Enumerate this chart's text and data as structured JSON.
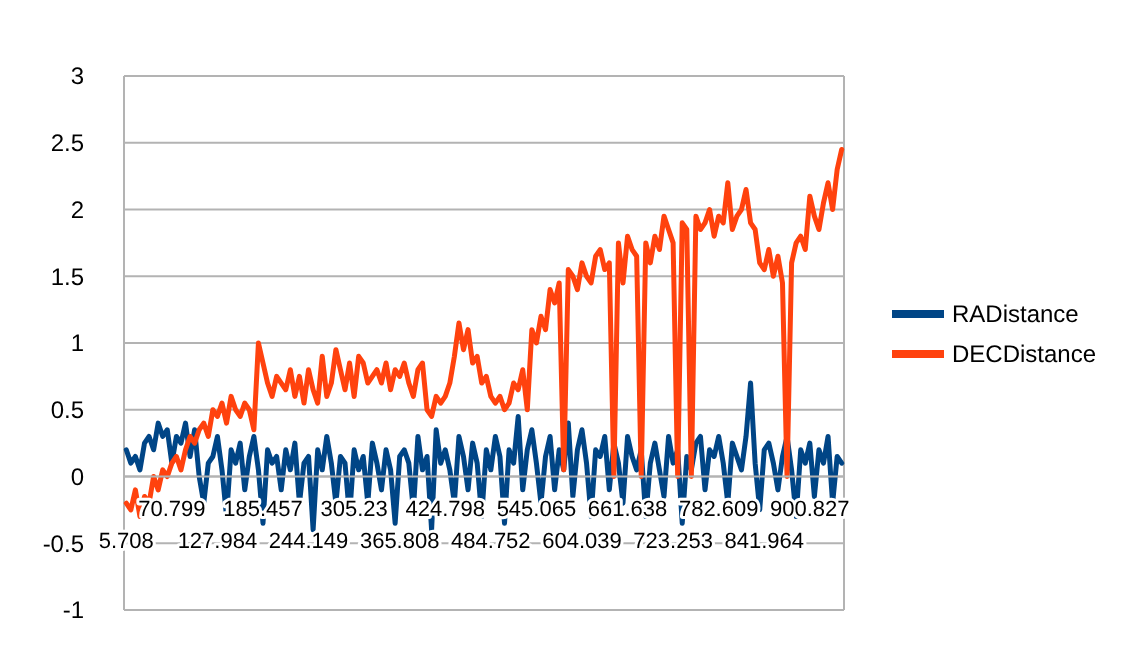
{
  "chart_data": {
    "type": "line",
    "categories": [
      "5.708",
      null,
      null,
      null,
      null,
      null,
      null,
      null,
      null,
      null,
      "70.799",
      null,
      null,
      null,
      null,
      null,
      null,
      null,
      null,
      null,
      "127.984",
      null,
      null,
      null,
      null,
      null,
      null,
      null,
      null,
      null,
      "185.457",
      null,
      null,
      null,
      null,
      null,
      null,
      null,
      null,
      null,
      "244.149",
      null,
      null,
      null,
      null,
      null,
      null,
      null,
      null,
      null,
      "305.23",
      null,
      null,
      null,
      null,
      null,
      null,
      null,
      null,
      null,
      "365.808",
      null,
      null,
      null,
      null,
      null,
      null,
      null,
      null,
      null,
      "424.798",
      null,
      null,
      null,
      null,
      null,
      null,
      null,
      null,
      null,
      "484.752",
      null,
      null,
      null,
      null,
      null,
      null,
      null,
      null,
      null,
      "545.065",
      null,
      null,
      null,
      null,
      null,
      null,
      null,
      null,
      null,
      "604.039",
      null,
      null,
      null,
      null,
      null,
      null,
      null,
      null,
      null,
      "661.638",
      null,
      null,
      null,
      null,
      null,
      null,
      null,
      null,
      null,
      "723.253",
      null,
      null,
      null,
      null,
      null,
      null,
      null,
      null,
      null,
      "782.609",
      null,
      null,
      null,
      null,
      null,
      null,
      null,
      null,
      null,
      "841.964",
      null,
      null,
      null,
      null,
      null,
      null,
      null,
      null,
      null,
      "900.827",
      null,
      null,
      null,
      null,
      null,
      null,
      null
    ],
    "series": [
      {
        "name": "RADistance",
        "color": "#004586",
        "values": [
          0.2,
          0.1,
          0.15,
          0.05,
          0.25,
          0.3,
          0.2,
          0.4,
          0.3,
          0.35,
          0.1,
          0.3,
          0.25,
          0.4,
          0.15,
          0.35,
          0,
          -0.2,
          0.1,
          0.15,
          0.3,
          0.05,
          -0.3,
          0.2,
          0.1,
          0.25,
          -0.1,
          0.15,
          0.3,
          0.05,
          -0.35,
          0.2,
          0.1,
          0.15,
          -0.1,
          0.2,
          0.05,
          0.25,
          -0.2,
          0.1,
          0.15,
          -0.4,
          0.2,
          0.05,
          0.3,
          0.1,
          -0.2,
          0.15,
          0.1,
          -0.3,
          0.2,
          0.05,
          0.15,
          -0.2,
          0.25,
          0.1,
          -0.1,
          0.2,
          0.05,
          -0.35,
          0.15,
          0.2,
          0.1,
          -0.25,
          0.3,
          0.05,
          0.15,
          -0.4,
          0.35,
          0.1,
          0.2,
          0.05,
          -0.2,
          0.3,
          0.15,
          -0.1,
          0.25,
          0.1,
          -0.3,
          0.2,
          0.05,
          0.3,
          0.15,
          -0.35,
          0.2,
          0.1,
          0.45,
          -0.1,
          0.2,
          0.35,
          0.1,
          -0.2,
          0.15,
          0.3,
          -0.1,
          0.2,
          0.05,
          0.4,
          -0.15,
          0.2,
          0.35,
          0.1,
          -0.3,
          0.2,
          0.15,
          0.3,
          -0.1,
          0.25,
          0.1,
          -0.2,
          0.3,
          0.15,
          0.05,
          0.2,
          -0.3,
          0.1,
          0.25,
          0.05,
          -0.15,
          0.3,
          0.1,
          0.2,
          -0.35,
          0.15,
          0.05,
          0.25,
          0.3,
          -0.1,
          0.2,
          0.15,
          0.3,
          0.1,
          -0.2,
          0.25,
          0.15,
          0.05,
          0.3,
          0.7,
          0.1,
          -0.25,
          0.2,
          0.25,
          0.1,
          -0.1,
          0.15,
          0.3,
          0.05,
          -0.3,
          0.2,
          0.1,
          0.25,
          -0.15,
          0.2,
          0.1,
          0.3,
          -0.2,
          0.15,
          0.1
        ]
      },
      {
        "name": "DECDistance",
        "color": "#ff420e",
        "values": [
          -0.2,
          -0.25,
          -0.1,
          -0.3,
          -0.15,
          -0.2,
          0,
          -0.1,
          0.05,
          0,
          0.1,
          0.15,
          0.05,
          0.2,
          0.3,
          0.25,
          0.35,
          0.4,
          0.3,
          0.5,
          0.45,
          0.55,
          0.4,
          0.6,
          0.5,
          0.45,
          0.55,
          0.5,
          0.35,
          1.0,
          0.85,
          0.7,
          0.6,
          0.75,
          0.7,
          0.65,
          0.8,
          0.6,
          0.75,
          0.55,
          0.8,
          0.65,
          0.55,
          0.9,
          0.6,
          0.7,
          0.95,
          0.8,
          0.65,
          0.85,
          0.6,
          0.9,
          0.85,
          0.7,
          0.75,
          0.8,
          0.7,
          0.85,
          0.65,
          0.8,
          0.75,
          0.85,
          0.7,
          0.6,
          0.8,
          0.85,
          0.5,
          0.45,
          0.6,
          0.55,
          0.6,
          0.7,
          0.9,
          1.15,
          0.95,
          1.1,
          0.85,
          0.9,
          0.7,
          0.75,
          0.6,
          0.55,
          0.6,
          0.5,
          0.55,
          0.7,
          0.65,
          0.8,
          0.5,
          1.1,
          1.0,
          1.2,
          1.1,
          1.4,
          1.3,
          1.45,
          0.05,
          1.55,
          1.5,
          1.4,
          1.6,
          1.5,
          1.45,
          1.65,
          1.7,
          1.55,
          1.6,
          0.0,
          1.75,
          1.45,
          1.8,
          1.7,
          1.65,
          0.0,
          1.75,
          1.6,
          1.8,
          1.7,
          1.95,
          1.85,
          1.75,
          0.0,
          1.9,
          1.85,
          0.0,
          1.95,
          1.85,
          1.9,
          2.0,
          1.8,
          1.95,
          1.9,
          2.2,
          1.85,
          1.95,
          2.0,
          2.15,
          1.9,
          1.85,
          1.6,
          1.55,
          1.7,
          1.5,
          1.65,
          1.45,
          0.0,
          1.6,
          1.75,
          1.8,
          1.7,
          2.1,
          1.95,
          1.85,
          2.05,
          2.2,
          2.0,
          2.3,
          2.45
        ]
      }
    ],
    "ylim": [
      -1,
      3
    ],
    "yticks": [
      -1,
      -0.5,
      0,
      0.5,
      1,
      1.5,
      2,
      2.5,
      3
    ],
    "grid": "y",
    "legend": "right",
    "line_style": "solid",
    "marker": "none"
  }
}
